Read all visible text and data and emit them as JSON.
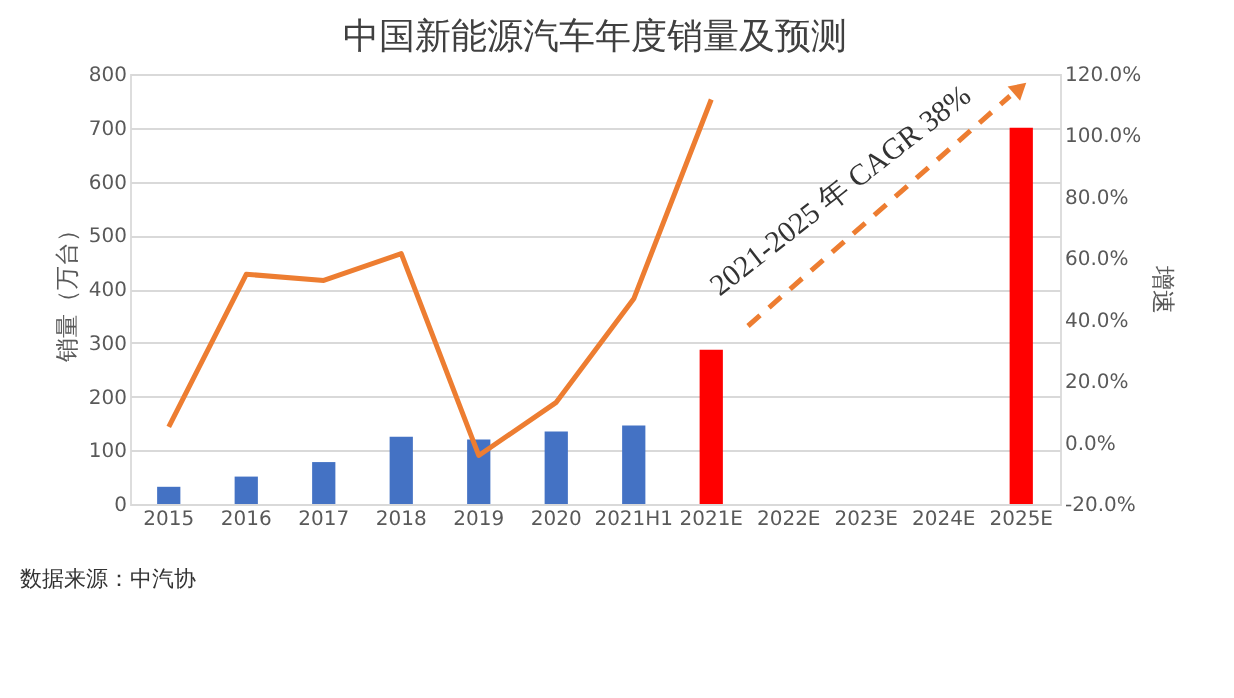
{
  "chart_data": {
    "type": "bar",
    "title": "中国新能源汽车年度销量及预测",
    "ylabel": "销量（万台）",
    "y2label": "增速",
    "categories": [
      "2015",
      "2016",
      "2017",
      "2018",
      "2019",
      "2020",
      "2021H1",
      "2021E",
      "2022E",
      "2023E",
      "2024E",
      "2025E"
    ],
    "series": [
      {
        "colors": [
          "#4472c4",
          "#4472c4",
          "#4472c4",
          "#4472c4",
          "#4472c4",
          "#4472c4",
          "#4472c4",
          "#ff0000",
          "#ff0000",
          "#ff0000",
          "#ff0000",
          "#ff0000"
        ],
        "values": [
          32,
          51,
          78,
          125,
          120,
          135,
          146,
          287,
          null,
          null,
          null,
          700
        ]
      },
      {
        "type": "line",
        "axis": "y2",
        "color": "#ed7d31",
        "values": [
          5.1,
          54.8,
          52.8,
          61.5,
          -4.2,
          13.1,
          46.8,
          111.7,
          null,
          null,
          null,
          null
        ]
      }
    ],
    "ylim": [
      0,
      800
    ],
    "yticks": [
      0,
      100,
      200,
      300,
      400,
      500,
      600,
      700,
      800
    ],
    "y2lim": [
      -20,
      120
    ],
    "y2ticks": [
      {
        "value": -20,
        "label": "-20.0%"
      },
      {
        "value": 0,
        "label": "0.0%"
      },
      {
        "value": 20,
        "label": "20.0%"
      },
      {
        "value": 40,
        "label": "40.0%"
      },
      {
        "value": 60,
        "label": "60.0%"
      },
      {
        "value": 80,
        "label": "80.0%"
      },
      {
        "value": 100,
        "label": "100.0%"
      },
      {
        "value": 120,
        "label": "120.0%"
      }
    ],
    "grid": "y",
    "annotations": [
      "2021-2025 年 CAGR 38%",
      "数据来源：中汽协"
    ]
  }
}
